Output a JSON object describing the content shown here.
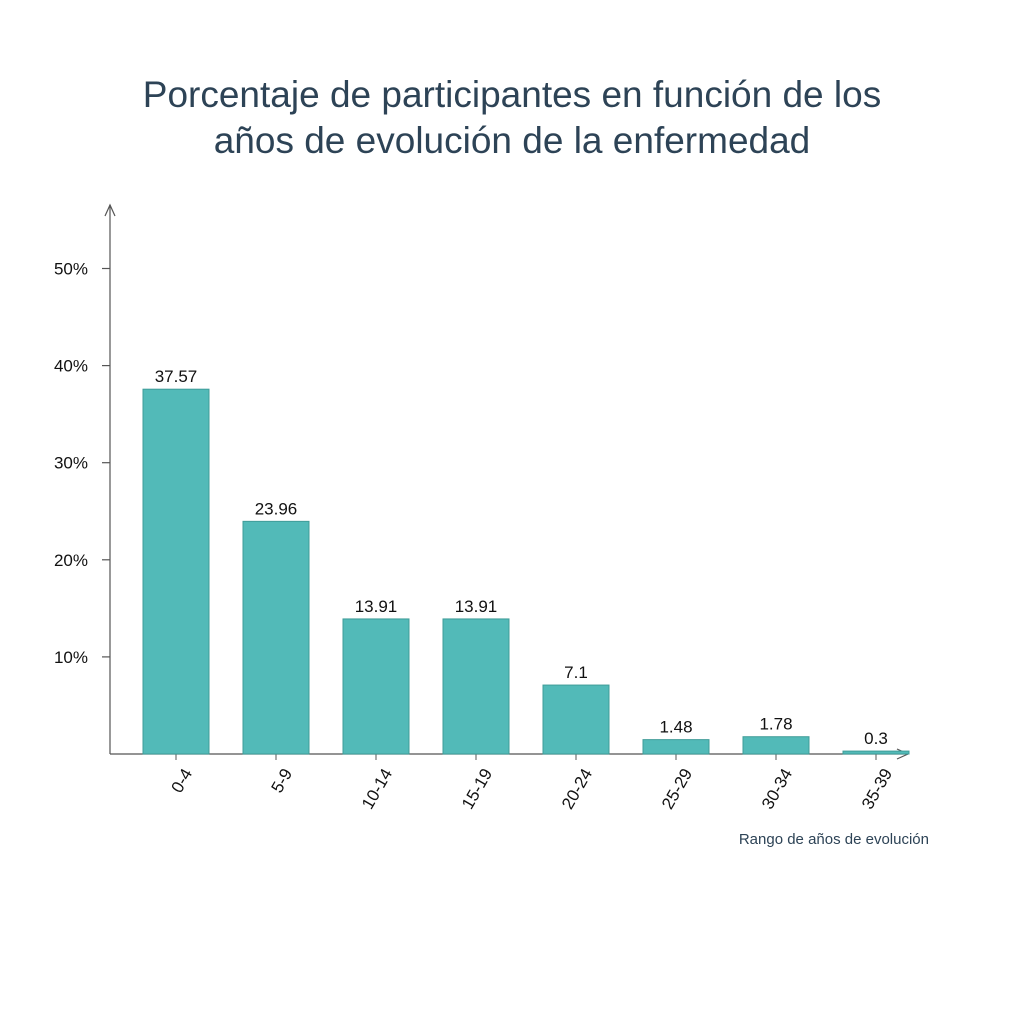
{
  "chart_data": {
    "type": "bar",
    "title_lines": [
      "Porcentaje de participantes en función de los",
      "años de evolución de la enfermedad"
    ],
    "xlabel": "Rango de años de evolución",
    "ylabel": "",
    "categories": [
      "0-4",
      "5-9",
      "10-14",
      "15-19",
      "20-24",
      "25-29",
      "30-34",
      "35-39"
    ],
    "values": [
      37.57,
      23.96,
      13.91,
      13.91,
      7.1,
      1.48,
      1.78,
      0.3
    ],
    "value_labels": [
      "37.57",
      "23.96",
      "13.91",
      "13.91",
      "7.1",
      "1.48",
      "1.78",
      "0.3"
    ],
    "yticks": [
      10,
      20,
      30,
      40,
      50
    ],
    "ytick_labels": [
      "10%",
      "20%",
      "30%",
      "40%",
      "50%"
    ],
    "ylim": [
      0,
      55
    ],
    "grid": false,
    "legend": "none",
    "bar_color": "#52bab8",
    "bar_edge_color": "#3f9c98",
    "axis_color": "#555555"
  }
}
